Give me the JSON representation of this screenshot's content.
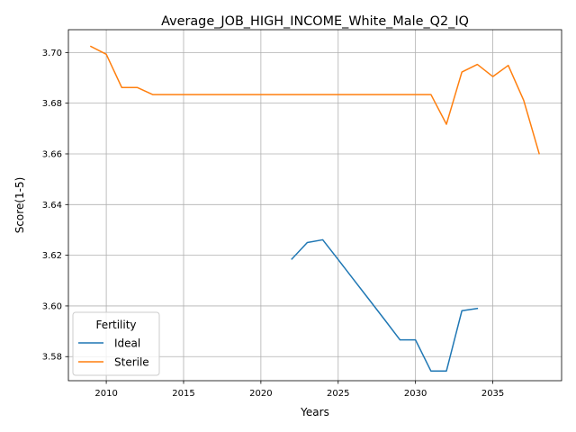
{
  "chart_data": {
    "type": "line",
    "title": "Average_JOB_HIGH_INCOME_White_Male_Q2_IQ",
    "xlabel": "Years",
    "ylabel": "Score(1-5)",
    "xlim": [
      2007.55,
      2039.45
    ],
    "ylim": [
      3.5705,
      3.709
    ],
    "xticks": [
      2010,
      2015,
      2020,
      2025,
      2030,
      2035
    ],
    "xtick_labels": [
      "2010",
      "2015",
      "2020",
      "2025",
      "2030",
      "2035"
    ],
    "yticks": [
      3.58,
      3.6,
      3.62,
      3.64,
      3.66,
      3.68,
      3.7
    ],
    "ytick_labels": [
      "3.58",
      "3.60",
      "3.62",
      "3.64",
      "3.66",
      "3.68",
      "3.70"
    ],
    "grid": true,
    "legend": {
      "title": "Fertility",
      "placement": "lower-left"
    },
    "series": [
      {
        "name": "Ideal",
        "color": "#1f77b4",
        "x": [
          2022,
          2023,
          2024,
          2025,
          2026,
          2027,
          2028,
          2029,
          2030,
          2031,
          2032,
          2033,
          2034
        ],
        "y": [
          3.6185,
          3.625,
          3.6261,
          3.6183,
          3.6104,
          3.6025,
          3.5946,
          3.5866,
          3.5866,
          3.5743,
          3.5743,
          3.5981,
          3.599
        ]
      },
      {
        "name": "Sterile",
        "color": "#ff7f0e",
        "x": [
          2009,
          2010,
          2011,
          2012,
          2013,
          2014,
          2015,
          2016,
          2017,
          2018,
          2019,
          2020,
          2021,
          2022,
          2023,
          2024,
          2025,
          2026,
          2027,
          2028,
          2029,
          2030,
          2031,
          2032,
          2033,
          2034,
          2035,
          2036,
          2037,
          2038
        ],
        "y": [
          3.7024,
          3.6993,
          3.6862,
          3.6862,
          3.6834,
          3.6834,
          3.6834,
          3.6834,
          3.6834,
          3.6834,
          3.6834,
          3.6834,
          3.6834,
          3.6834,
          3.6834,
          3.6834,
          3.6834,
          3.6834,
          3.6834,
          3.6834,
          3.6834,
          3.6834,
          3.6834,
          3.6717,
          3.6923,
          3.6953,
          3.6905,
          3.6949,
          3.6811,
          3.6601
        ]
      }
    ]
  }
}
